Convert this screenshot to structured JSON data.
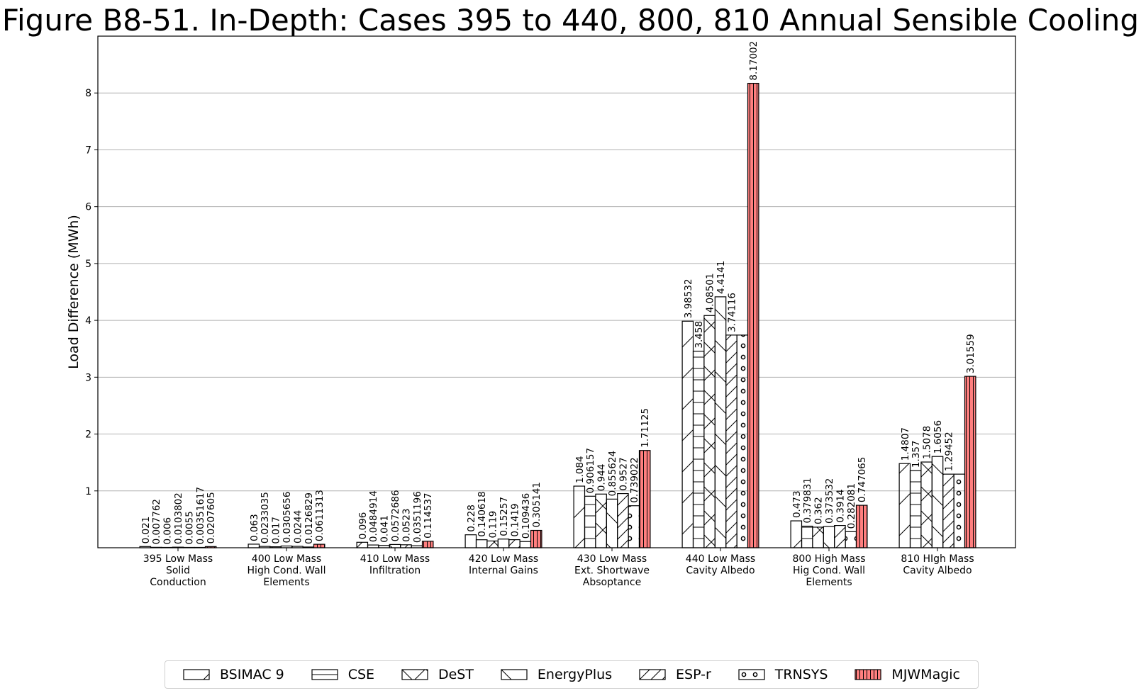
{
  "chart_data": {
    "type": "bar",
    "title": "Figure B8-51. In-Depth: Cases 395 to 440, 800, 810 Annual Sensible Cooling",
    "xlabel": "",
    "ylabel": "Load Difference (MWh)",
    "ylim": [
      0,
      9.0
    ],
    "yticks": [
      1,
      2,
      3,
      4,
      5,
      6,
      7,
      8
    ],
    "grid": "y",
    "legend_position": "bottom",
    "categories": [
      [
        "395 Low Mass",
        "Solid",
        "Conduction"
      ],
      [
        "400 Low Mass",
        "High Cond. Wall",
        "Elements"
      ],
      [
        "410 Low Mass",
        "Infiltration"
      ],
      [
        "420 Low Mass",
        "Internal Gains"
      ],
      [
        "430 Low Mass",
        "Ext. Shortwave",
        "Absoptance"
      ],
      [
        "440 Low Mass",
        "Cavity Albedo"
      ],
      [
        "800 High Mass",
        "Hig Cond. Wall",
        "Elements"
      ],
      [
        "810 HIgh Mass",
        "Cavity Albedo"
      ]
    ],
    "series": [
      {
        "name": "BSIMAC 9",
        "hatch": "diag-back",
        "color": "#ffffff",
        "values": [
          0.021,
          0.063,
          0.096,
          0.228,
          1.084,
          3.98532,
          0.473,
          1.4807
        ],
        "labels": [
          "0.021",
          "0.063",
          "0.096",
          "0.228",
          "1.084",
          "3.98532",
          "0.473",
          "1.4807"
        ]
      },
      {
        "name": "CSE",
        "hatch": "horizontal",
        "color": "#ffffff",
        "values": [
          0.007762,
          0.0233035,
          0.0484914,
          0.140618,
          0.906157,
          3.458,
          0.379831,
          1.357
        ],
        "labels": [
          "0.007762",
          "0.0233035",
          "0.0484914",
          "0.140618",
          "0.906157",
          "3.458",
          "0.379831",
          "1.357"
        ]
      },
      {
        "name": "DeST",
        "hatch": "cross",
        "color": "#ffffff",
        "values": [
          0.006,
          0.017,
          0.041,
          0.119,
          0.944,
          4.08501,
          0.362,
          1.5078
        ],
        "labels": [
          "0.006",
          "0.017",
          "0.041",
          "0.119",
          "0.944",
          "4.08501",
          "0.362",
          "1.5078"
        ]
      },
      {
        "name": "EnergyPlus",
        "hatch": "diag-forward",
        "color": "#ffffff",
        "values": [
          0.0103802,
          0.0305656,
          0.0572686,
          0.15257,
          0.855624,
          4.4141,
          0.373532,
          1.6056
        ],
        "labels": [
          "0.0103802",
          "0.0305656",
          "0.0572686",
          "0.15257",
          "0.855624",
          "4.4141",
          "0.373532",
          "1.6056"
        ]
      },
      {
        "name": "ESP-r",
        "hatch": "diag-back-dense",
        "color": "#ffffff",
        "values": [
          0.0055,
          0.0244,
          0.0523,
          0.1419,
          0.9527,
          3.74116,
          0.3914,
          1.29452
        ],
        "labels": [
          "0.0055",
          "0.0244",
          "0.0523",
          "0.1419",
          "0.9527",
          "3.74116",
          "0.3914",
          "1.29452"
        ]
      },
      {
        "name": "TRNSYS",
        "hatch": "circles",
        "color": "#ffffff",
        "values": [
          0.00351617,
          0.0126829,
          0.0351196,
          0.109436,
          0.739022,
          3.74116,
          0.282081,
          1.29452
        ],
        "labels": [
          "0.00351617",
          "0.0126829",
          "0.0351196",
          "0.109436",
          "0.739022",
          "",
          "0.282081",
          ""
        ]
      },
      {
        "name": "MJWMagic",
        "hatch": "vertical",
        "color": "#ff7f7f",
        "values": [
          0.0207605,
          0.0611313,
          0.114537,
          0.305141,
          1.71125,
          8.17002,
          0.747065,
          3.01559
        ],
        "labels": [
          "0.0207605",
          "0.0611313",
          "0.114537",
          "0.305141",
          "1.71125",
          "8.17002",
          "0.747065",
          "3.01559"
        ]
      }
    ]
  }
}
